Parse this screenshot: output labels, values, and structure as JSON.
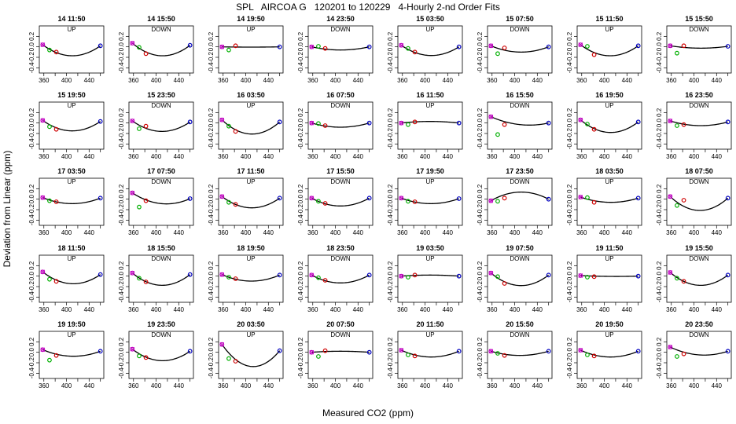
{
  "chart_data": {
    "type": "scatter",
    "title": "SPL   AIRCOA G   120201 to 120229   4-Hourly 2-nd Order Fits",
    "xlabel": "Measured CO2 (ppm)",
    "ylabel": "Deviation from Linear (ppm)",
    "xlim": [
      352,
      466
    ],
    "ylim": [
      -0.5,
      0.4
    ],
    "xticks": [
      360,
      400,
      440
    ],
    "x_minor_ticks": [
      380,
      420,
      460
    ],
    "yticks": [
      0.2,
      0.0,
      -0.2,
      -0.4
    ],
    "ytick_labels": [
      "0.2",
      "0.0",
      "-0.2",
      "-0.4"
    ],
    "standard_levels_ppm": [
      358,
      370,
      382,
      460
    ],
    "marker_colors": [
      "#c000c0",
      "#00b000",
      "#d00000",
      "#0000c0"
    ],
    "curve_color": "#000000",
    "grid": false,
    "panels": [
      {
        "title": "14 11:50",
        "direction": "UP",
        "values": [
          0.04,
          -0.06,
          -0.1,
          0.02
        ],
        "amp": -0.2
      },
      {
        "title": "14 15:50",
        "direction": "DOWN",
        "values": [
          0.07,
          -0.01,
          -0.13,
          0.03
        ],
        "amp": -0.22
      },
      {
        "title": "14 19:50",
        "direction": "UP",
        "values": [
          0.0,
          -0.06,
          0.02,
          0.0
        ],
        "amp": -0.005
      },
      {
        "title": "14 23:50",
        "direction": "DOWN",
        "values": [
          0.0,
          0.01,
          -0.03,
          0.0
        ],
        "amp": -0.06
      },
      {
        "title": "15 03:50",
        "direction": "UP",
        "values": [
          0.03,
          -0.03,
          -0.1,
          0.0
        ],
        "amp": -0.18
      },
      {
        "title": "15 07:50",
        "direction": "DOWN",
        "values": [
          0.02,
          -0.13,
          -0.02,
          0.0
        ],
        "amp": -0.11
      },
      {
        "title": "15 11:50",
        "direction": "UP",
        "values": [
          0.04,
          0.01,
          -0.15,
          0.02
        ],
        "amp": -0.2
      },
      {
        "title": "15 15:50",
        "direction": "DOWN",
        "values": [
          0.02,
          -0.12,
          0.02,
          0.01
        ],
        "amp": -0.04
      },
      {
        "title": "15 19:50",
        "direction": "UP",
        "values": [
          0.05,
          -0.07,
          -0.12,
          0.03
        ],
        "amp": -0.19
      },
      {
        "title": "15 23:50",
        "direction": "DOWN",
        "values": [
          0.04,
          -0.11,
          -0.06,
          0.02
        ],
        "amp": -0.19
      },
      {
        "title": "16 03:50",
        "direction": "UP",
        "values": [
          0.06,
          -0.06,
          -0.16,
          0.02
        ],
        "amp": -0.25
      },
      {
        "title": "16 07:50",
        "direction": "DOWN",
        "values": [
          0.0,
          -0.01,
          -0.05,
          0.0
        ],
        "amp": -0.08
      },
      {
        "title": "16 11:50",
        "direction": "UP",
        "values": [
          0.0,
          -0.03,
          0.02,
          0.0
        ],
        "amp": 0.03
      },
      {
        "title": "16 15:50",
        "direction": "DOWN",
        "values": [
          0.12,
          -0.22,
          -0.03,
          0.0
        ],
        "amp": -0.09
      },
      {
        "title": "16 19:50",
        "direction": "UP",
        "values": [
          0.06,
          -0.02,
          -0.12,
          0.02
        ],
        "amp": -0.22
      },
      {
        "title": "16 23:50",
        "direction": "DOWN",
        "values": [
          0.04,
          -0.05,
          -0.03,
          0.02
        ],
        "amp": -0.08
      },
      {
        "title": "17 03:50",
        "direction": "UP",
        "values": [
          0.03,
          -0.03,
          -0.05,
          0.02
        ],
        "amp": -0.11
      },
      {
        "title": "17 07:50",
        "direction": "DOWN",
        "values": [
          0.12,
          -0.15,
          -0.03,
          0.01
        ],
        "amp": -0.15
      },
      {
        "title": "17 11:50",
        "direction": "UP",
        "values": [
          0.05,
          -0.06,
          -0.1,
          0.02
        ],
        "amp": -0.2
      },
      {
        "title": "17 15:50",
        "direction": "DOWN",
        "values": [
          0.02,
          -0.04,
          -0.08,
          0.02
        ],
        "amp": -0.15
      },
      {
        "title": "17 19:50",
        "direction": "UP",
        "values": [
          0.02,
          -0.04,
          -0.05,
          0.01
        ],
        "amp": -0.1
      },
      {
        "title": "17 23:50",
        "direction": "DOWN",
        "values": [
          -0.03,
          -0.04,
          0.02,
          0.0
        ],
        "amp": 0.15
      },
      {
        "title": "18 03:50",
        "direction": "UP",
        "values": [
          0.04,
          0.03,
          -0.06,
          0.02
        ],
        "amp": -0.09
      },
      {
        "title": "18 07:50",
        "direction": "DOWN",
        "values": [
          0.05,
          -0.12,
          -0.02,
          0.02
        ],
        "amp": -0.25
      },
      {
        "title": "18 11:50",
        "direction": "UP",
        "values": [
          0.08,
          -0.06,
          -0.1,
          0.03
        ],
        "amp": -0.2
      },
      {
        "title": "18 15:50",
        "direction": "DOWN",
        "values": [
          0.06,
          -0.04,
          -0.11,
          0.03
        ],
        "amp": -0.22
      },
      {
        "title": "18 19:50",
        "direction": "UP",
        "values": [
          0.03,
          -0.02,
          -0.05,
          0.02
        ],
        "amp": -0.12
      },
      {
        "title": "18 23:50",
        "direction": "DOWN",
        "values": [
          0.02,
          -0.03,
          -0.08,
          0.02
        ],
        "amp": -0.15
      },
      {
        "title": "19 03:50",
        "direction": "UP",
        "values": [
          0.0,
          -0.02,
          0.02,
          0.0
        ],
        "amp": 0.02
      },
      {
        "title": "19 07:50",
        "direction": "DOWN",
        "values": [
          0.06,
          -0.01,
          -0.14,
          0.02
        ],
        "amp": -0.22
      },
      {
        "title": "19 11:50",
        "direction": "UP",
        "values": [
          0.01,
          -0.02,
          -0.01,
          0.0
        ],
        "amp": -0.01
      },
      {
        "title": "19 15:50",
        "direction": "DOWN",
        "values": [
          0.07,
          -0.04,
          -0.1,
          0.02
        ],
        "amp": -0.22
      },
      {
        "title": "19 19:50",
        "direction": "UP",
        "values": [
          0.05,
          -0.15,
          -0.06,
          0.02
        ],
        "amp": -0.11
      },
      {
        "title": "19 23:50",
        "direction": "DOWN",
        "values": [
          0.06,
          -0.07,
          -0.1,
          0.02
        ],
        "amp": -0.2
      },
      {
        "title": "20 03:50",
        "direction": "UP",
        "values": [
          0.15,
          -0.12,
          -0.17,
          0.03
        ],
        "amp": -0.36
      },
      {
        "title": "20 07:50",
        "direction": "DOWN",
        "values": [
          0.0,
          -0.08,
          0.03,
          0.0
        ],
        "amp": 0.02
      },
      {
        "title": "20 11:50",
        "direction": "UP",
        "values": [
          0.04,
          -0.05,
          -0.07,
          0.02
        ],
        "amp": -0.12
      },
      {
        "title": "20 15:50",
        "direction": "DOWN",
        "values": [
          0.02,
          -0.02,
          -0.06,
          0.02
        ],
        "amp": -0.08
      },
      {
        "title": "20 19:50",
        "direction": "UP",
        "values": [
          0.04,
          -0.05,
          -0.07,
          0.02
        ],
        "amp": -0.12
      },
      {
        "title": "20 23:50",
        "direction": "DOWN",
        "values": [
          0.1,
          -0.08,
          -0.03,
          0.02
        ],
        "amp": -0.11
      }
    ]
  }
}
